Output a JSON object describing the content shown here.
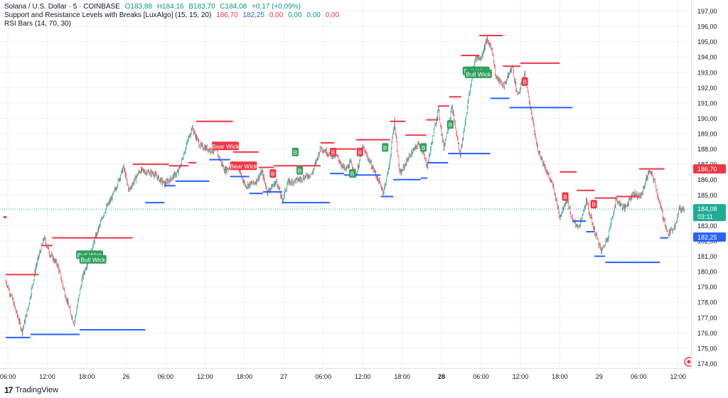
{
  "legend": {
    "symbol": "Solana / U.S. Dollar · 5 · COINBASE",
    "open": "O183,88",
    "high": "H184,16",
    "low": "B183,70",
    "close": "C184,08",
    "change": "+0,17 (+0,09%)",
    "indicator1_name": "Support and Resistance Levels with Breaks [LuxAlgo] (15, 15, 20)",
    "ind_v1": "186,70",
    "ind_v2": "182,25",
    "ind_v3": "0,00",
    "ind_v4": "0,00",
    "ind_v5": "0,00",
    "ind_v6": "0,00",
    "indicator2_name": "RSI Bars (14, 70, 30)"
  },
  "branding": {
    "label": "TradingView"
  },
  "colors": {
    "up": "#089981",
    "down": "#f23645",
    "resistance": "#f23645",
    "support": "#2962ff",
    "grid": "#f0f3fa",
    "current": "#22ab94"
  },
  "chart_data": {
    "type": "candlestick",
    "ylim": [
      174.0,
      197.0
    ],
    "yticks": [
      "197,00",
      "196,00",
      "195,00",
      "194,00",
      "193,00",
      "192,00",
      "191,00",
      "190,00",
      "189,00",
      "188,00",
      "187,00",
      "186,00",
      "185,00",
      "184,00",
      "183,00",
      "182,00",
      "181,00",
      "180,00",
      "179,00",
      "178,00",
      "177,00",
      "176,00",
      "175,00",
      "174,00"
    ],
    "xticks": [
      {
        "bar": 4,
        "label": "06:00",
        "bold": false
      },
      {
        "bar": 76,
        "label": "12:00",
        "bold": false
      },
      {
        "bar": 148,
        "label": "18:00",
        "bold": false
      },
      {
        "bar": 220,
        "label": "26",
        "bold": false
      },
      {
        "bar": 292,
        "label": "06:00",
        "bold": false
      },
      {
        "bar": 364,
        "label": "12:00",
        "bold": false
      },
      {
        "bar": 436,
        "label": "18:00",
        "bold": false
      },
      {
        "bar": 508,
        "label": "27",
        "bold": false
      },
      {
        "bar": 580,
        "label": "06:00",
        "bold": false
      },
      {
        "bar": 652,
        "label": "12:00",
        "bold": false
      },
      {
        "bar": 724,
        "label": "18:00",
        "bold": false
      },
      {
        "bar": 796,
        "label": "28",
        "bold": true
      },
      {
        "bar": 868,
        "label": "06:00",
        "bold": false
      },
      {
        "bar": 940,
        "label": "12:00",
        "bold": false
      },
      {
        "bar": 1012,
        "label": "18:00",
        "bold": false
      },
      {
        "bar": 1084,
        "label": "29",
        "bold": false
      },
      {
        "bar": 1156,
        "label": "06:00",
        "bold": false
      },
      {
        "bar": 1228,
        "label": "12:00",
        "bold": false
      }
    ],
    "path": [
      [
        0,
        179.4
      ],
      [
        12,
        178.2
      ],
      [
        30,
        176.1
      ],
      [
        40,
        177.5
      ],
      [
        55,
        180.3
      ],
      [
        70,
        182.2
      ],
      [
        80,
        181.2
      ],
      [
        95,
        180.4
      ],
      [
        110,
        178.3
      ],
      [
        125,
        176.6
      ],
      [
        140,
        179.6
      ],
      [
        160,
        181.8
      ],
      [
        180,
        183.9
      ],
      [
        195,
        184.9
      ],
      [
        215,
        186.8
      ],
      [
        225,
        185.3
      ],
      [
        245,
        186.6
      ],
      [
        270,
        186.4
      ],
      [
        290,
        185.7
      ],
      [
        315,
        186.5
      ],
      [
        340,
        189.4
      ],
      [
        355,
        188.2
      ],
      [
        370,
        188.0
      ],
      [
        385,
        187.8
      ],
      [
        400,
        186.6
      ],
      [
        420,
        187.1
      ],
      [
        438,
        185.6
      ],
      [
        455,
        185.8
      ],
      [
        468,
        186.5
      ],
      [
        478,
        185.2
      ],
      [
        495,
        185.9
      ],
      [
        505,
        184.6
      ],
      [
        515,
        185.8
      ],
      [
        535,
        186.0
      ],
      [
        560,
        186.4
      ],
      [
        575,
        188.1
      ],
      [
        590,
        187.7
      ],
      [
        605,
        187.5
      ],
      [
        620,
        186.6
      ],
      [
        630,
        187.1
      ],
      [
        640,
        186.3
      ],
      [
        652,
        188.1
      ],
      [
        670,
        186.8
      ],
      [
        690,
        185.2
      ],
      [
        700,
        186.8
      ],
      [
        710,
        189.8
      ],
      [
        720,
        186.3
      ],
      [
        735,
        187.4
      ],
      [
        755,
        188.4
      ],
      [
        770,
        186.9
      ],
      [
        790,
        190.6
      ],
      [
        800,
        188.1
      ],
      [
        815,
        190.7
      ],
      [
        830,
        187.6
      ],
      [
        845,
        191.2
      ],
      [
        858,
        194.0
      ],
      [
        868,
        193.9
      ],
      [
        878,
        195.1
      ],
      [
        888,
        194.6
      ],
      [
        895,
        192.7
      ],
      [
        910,
        192.1
      ],
      [
        925,
        193.4
      ],
      [
        935,
        191.4
      ],
      [
        948,
        192.9
      ],
      [
        960,
        190.3
      ],
      [
        970,
        188.2
      ],
      [
        985,
        186.8
      ],
      [
        1000,
        185.5
      ],
      [
        1012,
        183.6
      ],
      [
        1025,
        184.8
      ],
      [
        1035,
        183.3
      ],
      [
        1048,
        182.9
      ],
      [
        1060,
        184.6
      ],
      [
        1075,
        182.7
      ],
      [
        1088,
        181.3
      ],
      [
        1100,
        182.3
      ],
      [
        1115,
        184.7
      ],
      [
        1130,
        184.1
      ],
      [
        1145,
        185.1
      ],
      [
        1160,
        184.9
      ],
      [
        1175,
        186.6
      ],
      [
        1185,
        185.9
      ],
      [
        1195,
        184.3
      ],
      [
        1210,
        182.4
      ],
      [
        1222,
        183.0
      ],
      [
        1230,
        184.1
      ],
      [
        1238,
        184.08
      ]
    ],
    "bars_count": 1240,
    "last_close": 184.08,
    "resistance_levels": [
      {
        "x1": 0,
        "x2": 60,
        "y": 179.8
      },
      {
        "x1": 66,
        "x2": 85,
        "y": 181.7
      },
      {
        "x1": 85,
        "x2": 232,
        "y": 182.2
      },
      {
        "x1": 232,
        "x2": 298,
        "y": 187.0
      },
      {
        "x1": 298,
        "x2": 334,
        "y": 186.9
      },
      {
        "x1": 334,
        "x2": 348,
        "y": 187.1
      },
      {
        "x1": 348,
        "x2": 415,
        "y": 189.8
      },
      {
        "x1": 415,
        "x2": 462,
        "y": 187.8
      },
      {
        "x1": 462,
        "x2": 490,
        "y": 186.8
      },
      {
        "x1": 490,
        "x2": 575,
        "y": 186.9
      },
      {
        "x1": 575,
        "x2": 600,
        "y": 188.4
      },
      {
        "x1": 600,
        "x2": 640,
        "y": 188.0
      },
      {
        "x1": 640,
        "x2": 702,
        "y": 188.6
      },
      {
        "x1": 702,
        "x2": 730,
        "y": 189.8
      },
      {
        "x1": 730,
        "x2": 768,
        "y": 188.9
      },
      {
        "x1": 768,
        "x2": 790,
        "y": 189.9
      },
      {
        "x1": 790,
        "x2": 810,
        "y": 190.8
      },
      {
        "x1": 810,
        "x2": 832,
        "y": 191.4
      },
      {
        "x1": 832,
        "x2": 855,
        "y": 194.1
      },
      {
        "x1": 855,
        "x2": 865,
        "y": 194.1
      },
      {
        "x1": 865,
        "x2": 908,
        "y": 195.4
      },
      {
        "x1": 908,
        "x2": 940,
        "y": 193.4
      },
      {
        "x1": 940,
        "x2": 1012,
        "y": 193.6
      },
      {
        "x1": 1012,
        "x2": 1043,
        "y": 186.5
      },
      {
        "x1": 1043,
        "x2": 1076,
        "y": 185.3
      },
      {
        "x1": 1076,
        "x2": 1115,
        "y": 184.8
      },
      {
        "x1": 1115,
        "x2": 1157,
        "y": 184.9
      },
      {
        "x1": 1157,
        "x2": 1203,
        "y": 186.7
      }
    ],
    "support_levels": [
      {
        "x1": 0,
        "x2": 45,
        "y": 175.7
      },
      {
        "x1": 45,
        "x2": 135,
        "y": 175.9
      },
      {
        "x1": 135,
        "x2": 255,
        "y": 176.2
      },
      {
        "x1": 255,
        "x2": 290,
        "y": 184.5
      },
      {
        "x1": 290,
        "x2": 310,
        "y": 185.6
      },
      {
        "x1": 310,
        "x2": 372,
        "y": 185.9
      },
      {
        "x1": 372,
        "x2": 410,
        "y": 187.3
      },
      {
        "x1": 410,
        "x2": 445,
        "y": 186.2
      },
      {
        "x1": 445,
        "x2": 470,
        "y": 185.1
      },
      {
        "x1": 470,
        "x2": 505,
        "y": 185.2
      },
      {
        "x1": 505,
        "x2": 592,
        "y": 184.5
      },
      {
        "x1": 592,
        "x2": 618,
        "y": 186.4
      },
      {
        "x1": 618,
        "x2": 685,
        "y": 186.3
      },
      {
        "x1": 685,
        "x2": 708,
        "y": 184.9
      },
      {
        "x1": 708,
        "x2": 758,
        "y": 186.0
      },
      {
        "x1": 758,
        "x2": 770,
        "y": 186.1
      },
      {
        "x1": 770,
        "x2": 808,
        "y": 187.1
      },
      {
        "x1": 808,
        "x2": 885,
        "y": 187.7
      },
      {
        "x1": 885,
        "x2": 920,
        "y": 191.3
      },
      {
        "x1": 920,
        "x2": 1035,
        "y": 190.7
      },
      {
        "x1": 1035,
        "x2": 1060,
        "y": 183.3
      },
      {
        "x1": 1060,
        "x2": 1075,
        "y": 182.6
      },
      {
        "x1": 1075,
        "x2": 1095,
        "y": 181.0
      },
      {
        "x1": 1095,
        "x2": 1095,
        "y": 181.0
      },
      {
        "x1": 1095,
        "x2": 1195,
        "y": 180.6
      },
      {
        "x1": 1195,
        "x2": 1210,
        "y": 182.2
      }
    ],
    "labels": [
      {
        "bar": 152,
        "y": 181.1,
        "text": "Bull Wick",
        "kind": "bull"
      },
      {
        "bar": 158,
        "y": 180.8,
        "text": "Bull Wick",
        "kind": "bull"
      },
      {
        "bar": 400,
        "y": 188.2,
        "text": "Bear Wick",
        "kind": "bear"
      },
      {
        "bar": 433,
        "y": 186.9,
        "text": "Bear Wick",
        "kind": "bear"
      },
      {
        "bar": 858,
        "y": 193.1,
        "text": "Bull Wick",
        "kind": "bull"
      },
      {
        "bar": 862,
        "y": 192.9,
        "text": "Bull Wick",
        "kind": "bull"
      }
    ],
    "markers": [
      {
        "bar": 488,
        "y": 186.4,
        "text": "B",
        "kind": "bear"
      },
      {
        "bar": 529,
        "y": 187.8,
        "text": "B",
        "kind": "bull"
      },
      {
        "bar": 537,
        "y": 186.6,
        "text": "B",
        "kind": "bull"
      },
      {
        "bar": 598,
        "y": 187.8,
        "text": "B",
        "kind": "bear"
      },
      {
        "bar": 633,
        "y": 186.4,
        "text": "B",
        "kind": "bull"
      },
      {
        "bar": 647,
        "y": 187.8,
        "text": "B",
        "kind": "bear"
      },
      {
        "bar": 693,
        "y": 188.1,
        "text": "B",
        "kind": "bull"
      },
      {
        "bar": 763,
        "y": 188.1,
        "text": "B",
        "kind": "bull"
      },
      {
        "bar": 812,
        "y": 189.6,
        "text": "B",
        "kind": "bull"
      },
      {
        "bar": 948,
        "y": 192.4,
        "text": "B",
        "kind": "bear"
      },
      {
        "bar": 1022,
        "y": 184.9,
        "text": "B",
        "kind": "bear"
      },
      {
        "bar": 1074,
        "y": 184.4,
        "text": "B",
        "kind": "bear"
      }
    ],
    "price_tags": [
      {
        "value": 186.7,
        "text": "186,70",
        "color": "#f23645"
      },
      {
        "value": 184.08,
        "text": "184,08",
        "sub": "03:11",
        "color": "#22ab94"
      },
      {
        "value": 182.25,
        "text": "182,25",
        "color": "#2962ff"
      }
    ]
  }
}
